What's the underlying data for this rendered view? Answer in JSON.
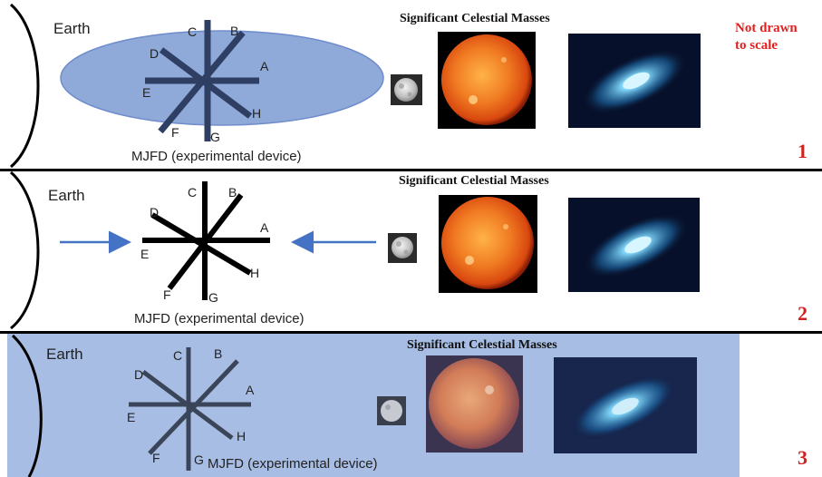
{
  "earth_label": "Earth",
  "section_heading": "Significant Celestial Masses",
  "device_label": "MJFD (experimental device)",
  "note_lines": [
    "Not drawn",
    "to scale"
  ],
  "device_letters": [
    "A",
    "B",
    "C",
    "D",
    "E",
    "F",
    "G",
    "H"
  ],
  "panels": [
    {
      "number": "1"
    },
    {
      "number": "2"
    },
    {
      "number": "3"
    }
  ],
  "colors": {
    "note_red": "#e02020",
    "panel_number_red": "#d32020",
    "ellipse_blue": "#8fa9d9",
    "panel3_background": "#a7bde3",
    "arrow_blue": "#4472c4",
    "device_panel1": "#2e3f63",
    "device_panel2": "#000000",
    "device_panel3": "#3b4559",
    "sun_orange": "#e8621c",
    "galaxy_blue": "#4fb3ea"
  },
  "icons": [
    "moon-icon",
    "sun-photo",
    "galaxy-photo",
    "arrow-right-icon",
    "arrow-left-icon"
  ]
}
